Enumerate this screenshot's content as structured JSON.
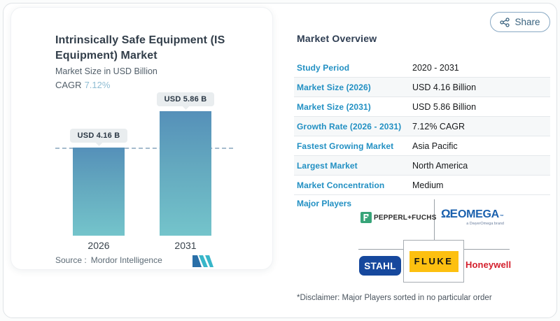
{
  "share": {
    "label": "Share"
  },
  "card": {
    "title": "Intrinsically Safe Equipment (IS Equipment) Market",
    "subtitle": "Market Size in USD Billion",
    "cagr_label": "CAGR",
    "cagr_value": "7.12%",
    "source_label": "Source :",
    "source_value": "Mordor Intelligence"
  },
  "chart_data": {
    "type": "bar",
    "title": "Intrinsically Safe Equipment (IS Equipment) Market",
    "ylabel": "Market Size in USD Billion",
    "categories": [
      "2026",
      "2031"
    ],
    "values": [
      4.16,
      5.86
    ],
    "value_labels": [
      "USD 4.16 B",
      "USD 5.86 B"
    ],
    "reference_line": 4.16,
    "ylim": [
      0,
      6
    ],
    "grid": false,
    "bar_gradient": [
      "#5590b9",
      "#74c4cb"
    ],
    "cagr": "7.12%"
  },
  "overview": {
    "title": "Market Overview",
    "rows": [
      {
        "label": "Study Period",
        "value": "2020 - 2031"
      },
      {
        "label": "Market Size (2026)",
        "value": "USD 4.16 Billion"
      },
      {
        "label": "Market Size (2031)",
        "value": "USD 5.86 Billion"
      },
      {
        "label": "Growth Rate (2026 - 2031)",
        "value": "7.12% CAGR"
      },
      {
        "label": "Fastest Growing Market",
        "value": "Asia Pacific"
      },
      {
        "label": "Largest Market",
        "value": "North America"
      },
      {
        "label": "Market Concentration",
        "value": "Medium"
      }
    ],
    "major_players_label": "Major Players",
    "disclaimer": "*Disclaimer: Major Players sorted in no particular order"
  },
  "logos": {
    "pepperl_fuchs": "PEPPERL+FUCHS",
    "omega_mark": "ΩE",
    "omega_text": "OMEGA",
    "omega_tm": "™",
    "omega_sub": "a DwyerOmega brand",
    "stahl": "STAHL",
    "fluke": "FLUKE",
    "honeywell": "Honeywell"
  },
  "colors": {
    "label_blue": "#2290c3",
    "cagr_blue": "#8fbdd3",
    "bar_top": "#5590b9",
    "bar_bottom": "#74c4cb",
    "fluke_yellow": "#fdc010",
    "stahl_blue": "#16489d",
    "honeywell_red": "#d41f2c",
    "pepperl_green": "#37a478",
    "omega_blue": "#1b61ae"
  }
}
